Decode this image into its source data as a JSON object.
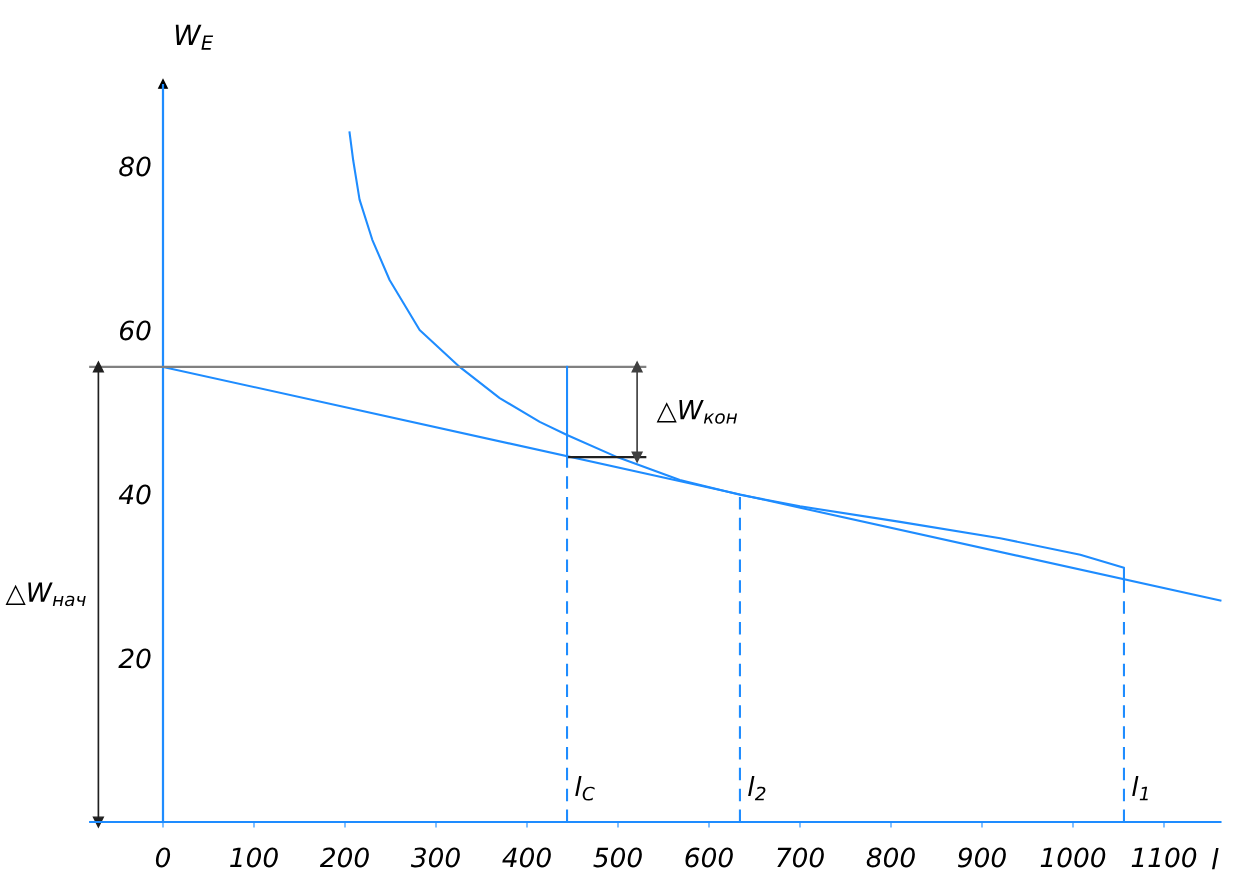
{
  "chart_data": {
    "type": "line",
    "xlabel": "l",
    "ylabel": "W$_{E}$",
    "xlim": [
      -80,
      1162
    ],
    "ylim": [
      0,
      90
    ],
    "xticks": [
      0,
      100,
      200,
      300,
      400,
      500,
      600,
      700,
      800,
      900,
      1000,
      1100
    ],
    "yticks": [
      20,
      40,
      60,
      80
    ],
    "grid": false,
    "ref_lines": [
      {
        "axis": "x",
        "value": 0,
        "color": "#1e8cff"
      }
    ],
    "annotations": [
      "△W$_{кон}$",
      "△W$_{нач}$"
    ],
    "series": [
      {
        "color": "#1e8cff",
        "x": [
          205,
          209,
          216,
          230,
          249,
          282,
          326,
          370,
          414,
          444,
          499,
          568,
          634,
          700,
          810,
          920,
          1008,
          1056,
          1056
        ],
        "values": [
          84.1,
          80.7,
          75.9,
          71,
          66.1,
          60,
          55.5,
          51.7,
          48.8,
          47.2,
          44.5,
          41.7,
          39.9,
          38.5,
          36.6,
          34.6,
          32.6,
          31.0,
          29.5
        ]
      },
      {
        "color": "#1e8cff",
        "x": [
          0,
          1162
        ],
        "values": [
          55.5,
          27
        ]
      },
      {
        "color": "#808080",
        "x": [
          -80,
          530
        ],
        "values": [
          55.5,
          55.5
        ]
      },
      {
        "color": "#202020",
        "x": [
          444,
          530
        ],
        "values": [
          44.5,
          44.5
        ]
      },
      {
        "color": "#1e8cff",
        "x": [
          444,
          444
        ],
        "values": [
          44.5,
          55.5
        ]
      },
      {
        "color": "#1e8cff",
        "line_style": "dashed",
        "name": "l$_{C}$",
        "x": [
          444,
          444
        ],
        "values": [
          0,
          44.5
        ]
      },
      {
        "color": "#1e8cff",
        "line_style": "dashed",
        "name": "l$_{2}$",
        "x": [
          634,
          634
        ],
        "values": [
          0,
          40
        ]
      },
      {
        "color": "#1e8cff",
        "line_style": "dashed",
        "name": "l$_{1}$",
        "x": [
          1056,
          1056
        ],
        "values": [
          0,
          29.5
        ]
      },
      {
        "color": "#404040",
        "marker": "triangle",
        "x": [
          521,
          521
        ],
        "values": [
          44.5,
          55.5
        ]
      },
      {
        "color": "#202020",
        "marker": "triangle",
        "x": [
          -71,
          -71
        ],
        "values": [
          0,
          55.5
        ]
      }
    ]
  }
}
